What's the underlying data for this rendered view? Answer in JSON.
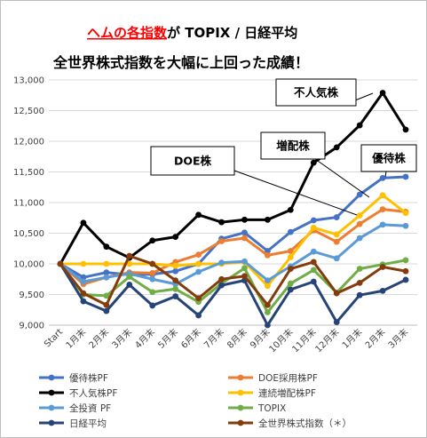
{
  "chart_data": {
    "type": "line",
    "title": {
      "line1_red": "ヘムの各指数",
      "line1_black": "が TOPIX / 日経平均",
      "line2": "全世界株式指数を大幅に上回った成績！"
    },
    "categories": [
      "Start",
      "1月末",
      "2月末",
      "3月末",
      "4月末",
      "5月末",
      "6月末",
      "7月末",
      "8月末",
      "9月末",
      "10月末",
      "11月末",
      "12月末",
      "1月末",
      "2月末",
      "3月末"
    ],
    "ylim": [
      9000,
      13000
    ],
    "yticks": [
      9000,
      9500,
      10000,
      10500,
      11000,
      11500,
      12000,
      12500,
      13000
    ],
    "ytick_labels": [
      "9,000",
      "9,500",
      "10,000",
      "10,500",
      "11,000",
      "11,500",
      "12,000",
      "12,500",
      "13,000"
    ],
    "grid": true,
    "legend_position": "bottom",
    "series": [
      {
        "name": "優待株PF",
        "color": "#4472C4",
        "values": [
          10000,
          9780,
          9860,
          9820,
          9830,
          9880,
          10000,
          10410,
          10510,
          10210,
          10520,
          10710,
          10760,
          11130,
          11400,
          11420
        ]
      },
      {
        "name": "DOE採用株PF",
        "color": "#ED7D31",
        "values": [
          10000,
          9670,
          9780,
          9860,
          9850,
          10030,
          10150,
          10370,
          10420,
          10140,
          10210,
          10550,
          10360,
          10650,
          10890,
          10850
        ]
      },
      {
        "name": "不人気株PF",
        "color": "#000000",
        "values": [
          10000,
          10670,
          10280,
          10100,
          10380,
          10440,
          10800,
          10680,
          10720,
          10720,
          10880,
          11650,
          11900,
          12260,
          12790,
          12190
        ]
      },
      {
        "name": "連続増配株PF",
        "color": "#FFC000",
        "values": [
          10000,
          10000,
          10000,
          10000,
          10000,
          9970,
          10000,
          10000,
          10030,
          9640,
          10110,
          10590,
          10480,
          10790,
          11120,
          10830
        ]
      },
      {
        "name": "全投資 PF",
        "color": "#5B9BD5",
        "values": [
          10000,
          9710,
          9780,
          9840,
          9750,
          9670,
          9870,
          10020,
          10040,
          9730,
          9960,
          10200,
          10090,
          10420,
          10640,
          10620
        ]
      },
      {
        "name": "TOPIX",
        "color": "#70AD47",
        "values": [
          10000,
          9500,
          9480,
          9790,
          9540,
          9590,
          9380,
          9680,
          9930,
          9210,
          9680,
          9900,
          9530,
          9920,
          9990,
          10060
        ]
      },
      {
        "name": "日経平均",
        "color": "#264478",
        "values": [
          10000,
          9390,
          9230,
          9660,
          9320,
          9470,
          9160,
          9650,
          9730,
          9000,
          9580,
          9710,
          9050,
          9490,
          9560,
          9740
        ]
      },
      {
        "name": "全世界株式指数（＊）",
        "color": "#843C0C",
        "values": [
          10000,
          9520,
          9330,
          10130,
          10000,
          9730,
          9440,
          9750,
          9800,
          9330,
          9920,
          10030,
          9520,
          9690,
          9950,
          9880
        ]
      }
    ],
    "annotations": [
      {
        "text": "不人気株"
      },
      {
        "text": "増配株"
      },
      {
        "text": "DOE株"
      },
      {
        "text": "優待株"
      }
    ]
  }
}
